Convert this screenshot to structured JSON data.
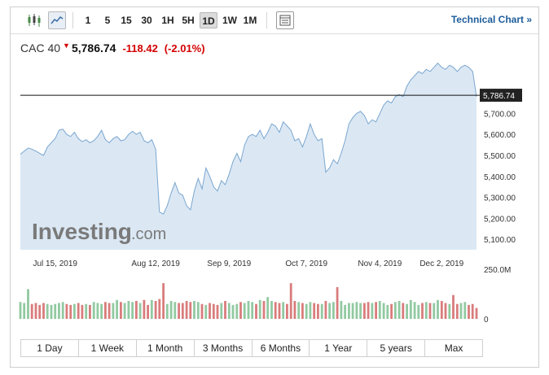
{
  "toolbar": {
    "icons": [
      "candlestick-icon",
      "area-chart-icon"
    ],
    "intervals": [
      "1",
      "5",
      "15",
      "30",
      "1H",
      "5H",
      "1D",
      "1W",
      "1M"
    ],
    "active_interval": "1D",
    "technical_chart_label": "Technical Chart »"
  },
  "quote": {
    "name": "CAC 40",
    "direction_glyph": "▼",
    "price": "5,786.74",
    "change": "-118.42",
    "change_pct": "(-2.01%)"
  },
  "watermark": {
    "brand": "Investing",
    "suffix": ".com"
  },
  "colors": {
    "area_fill": "#dbe8f4",
    "line": "#7aa6cf",
    "up_volume": "#91c9a1",
    "down_volume": "#d97c7c",
    "change_red": "#d30000",
    "link_blue": "#1d5d9b"
  },
  "chart_data": {
    "type": "area",
    "price_label": "5,786.74",
    "last_price": 5786.74,
    "ylim": [
      5050,
      5950
    ],
    "y_ticks": [
      "5,700.00",
      "5,600.00",
      "5,500.00",
      "5,400.00",
      "5,300.00",
      "5,200.00",
      "5,100.00"
    ],
    "y_tick_values": [
      5700,
      5600,
      5500,
      5400,
      5300,
      5200,
      5100
    ],
    "x_ticks": [
      "Jul 15, 2019",
      "Aug 12, 2019",
      "Sep 9, 2019",
      "Oct 7, 2019",
      "Nov 4, 2019",
      "Dec 2, 2019"
    ],
    "volume_max_label": "250.0M",
    "volume_min_label": "0",
    "volume_max": 250,
    "series": [
      {
        "values": [
          5505,
          5520,
          5535,
          5530,
          5520,
          5510,
          5500,
          5540,
          5560,
          5580,
          5620,
          5625,
          5600,
          5590,
          5610,
          5580,
          5565,
          5575,
          5560,
          5570,
          5590,
          5620,
          5575,
          5560,
          5580,
          5590,
          5570,
          5575,
          5600,
          5615,
          5600,
          5610,
          5570,
          5560,
          5575,
          5530,
          5230,
          5220,
          5260,
          5320,
          5370,
          5320,
          5310,
          5260,
          5240,
          5330,
          5390,
          5340,
          5440,
          5400,
          5350,
          5330,
          5380,
          5360,
          5410,
          5470,
          5510,
          5470,
          5550,
          5590,
          5600,
          5590,
          5620,
          5580,
          5610,
          5650,
          5640,
          5610,
          5660,
          5640,
          5620,
          5570,
          5580,
          5540,
          5590,
          5650,
          5600,
          5570,
          5580,
          5420,
          5440,
          5480,
          5460,
          5510,
          5570,
          5650,
          5680,
          5700,
          5710,
          5690,
          5650,
          5670,
          5660,
          5700,
          5740,
          5760,
          5750,
          5780,
          5790,
          5780,
          5830,
          5860,
          5880,
          5900,
          5890,
          5910,
          5900,
          5920,
          5940,
          5920,
          5910,
          5930,
          5920,
          5900,
          5920,
          5930,
          5920,
          5900,
          5780
        ],
        "volumes": [
          85,
          80,
          150,
          75,
          80,
          70,
          80,
          75,
          70,
          75,
          80,
          85,
          75,
          70,
          75,
          80,
          70,
          75,
          70,
          85,
          80,
          75,
          85,
          80,
          80,
          95,
          85,
          80,
          90,
          85,
          90,
          80,
          95,
          70,
          95,
          90,
          100,
          180,
          75,
          90,
          85,
          80,
          80,
          90,
          85,
          90,
          85,
          75,
          70,
          80,
          75,
          70,
          80,
          90,
          80,
          70,
          75,
          85,
          80,
          90,
          85,
          75,
          95,
          90,
          110,
          90,
          85,
          80,
          85,
          75,
          180,
          90,
          85,
          80,
          75,
          85,
          80,
          75,
          75,
          90,
          80,
          85,
          160,
          90,
          70,
          80,
          80,
          85,
          80,
          80,
          85,
          80,
          85,
          90,
          80,
          70,
          75,
          85,
          90,
          80,
          75,
          95,
          85,
          70,
          80,
          85,
          80,
          80,
          95,
          90,
          80,
          75,
          120,
          75,
          80,
          85,
          70,
          75,
          55
        ]
      }
    ],
    "logic": "values oldest to newest; ticks labelled monthly",
    "ranges": [
      "1 Day",
      "1 Week",
      "1 Month",
      "3 Months",
      "6 Months",
      "1 Year",
      "5 years",
      "Max"
    ]
  }
}
